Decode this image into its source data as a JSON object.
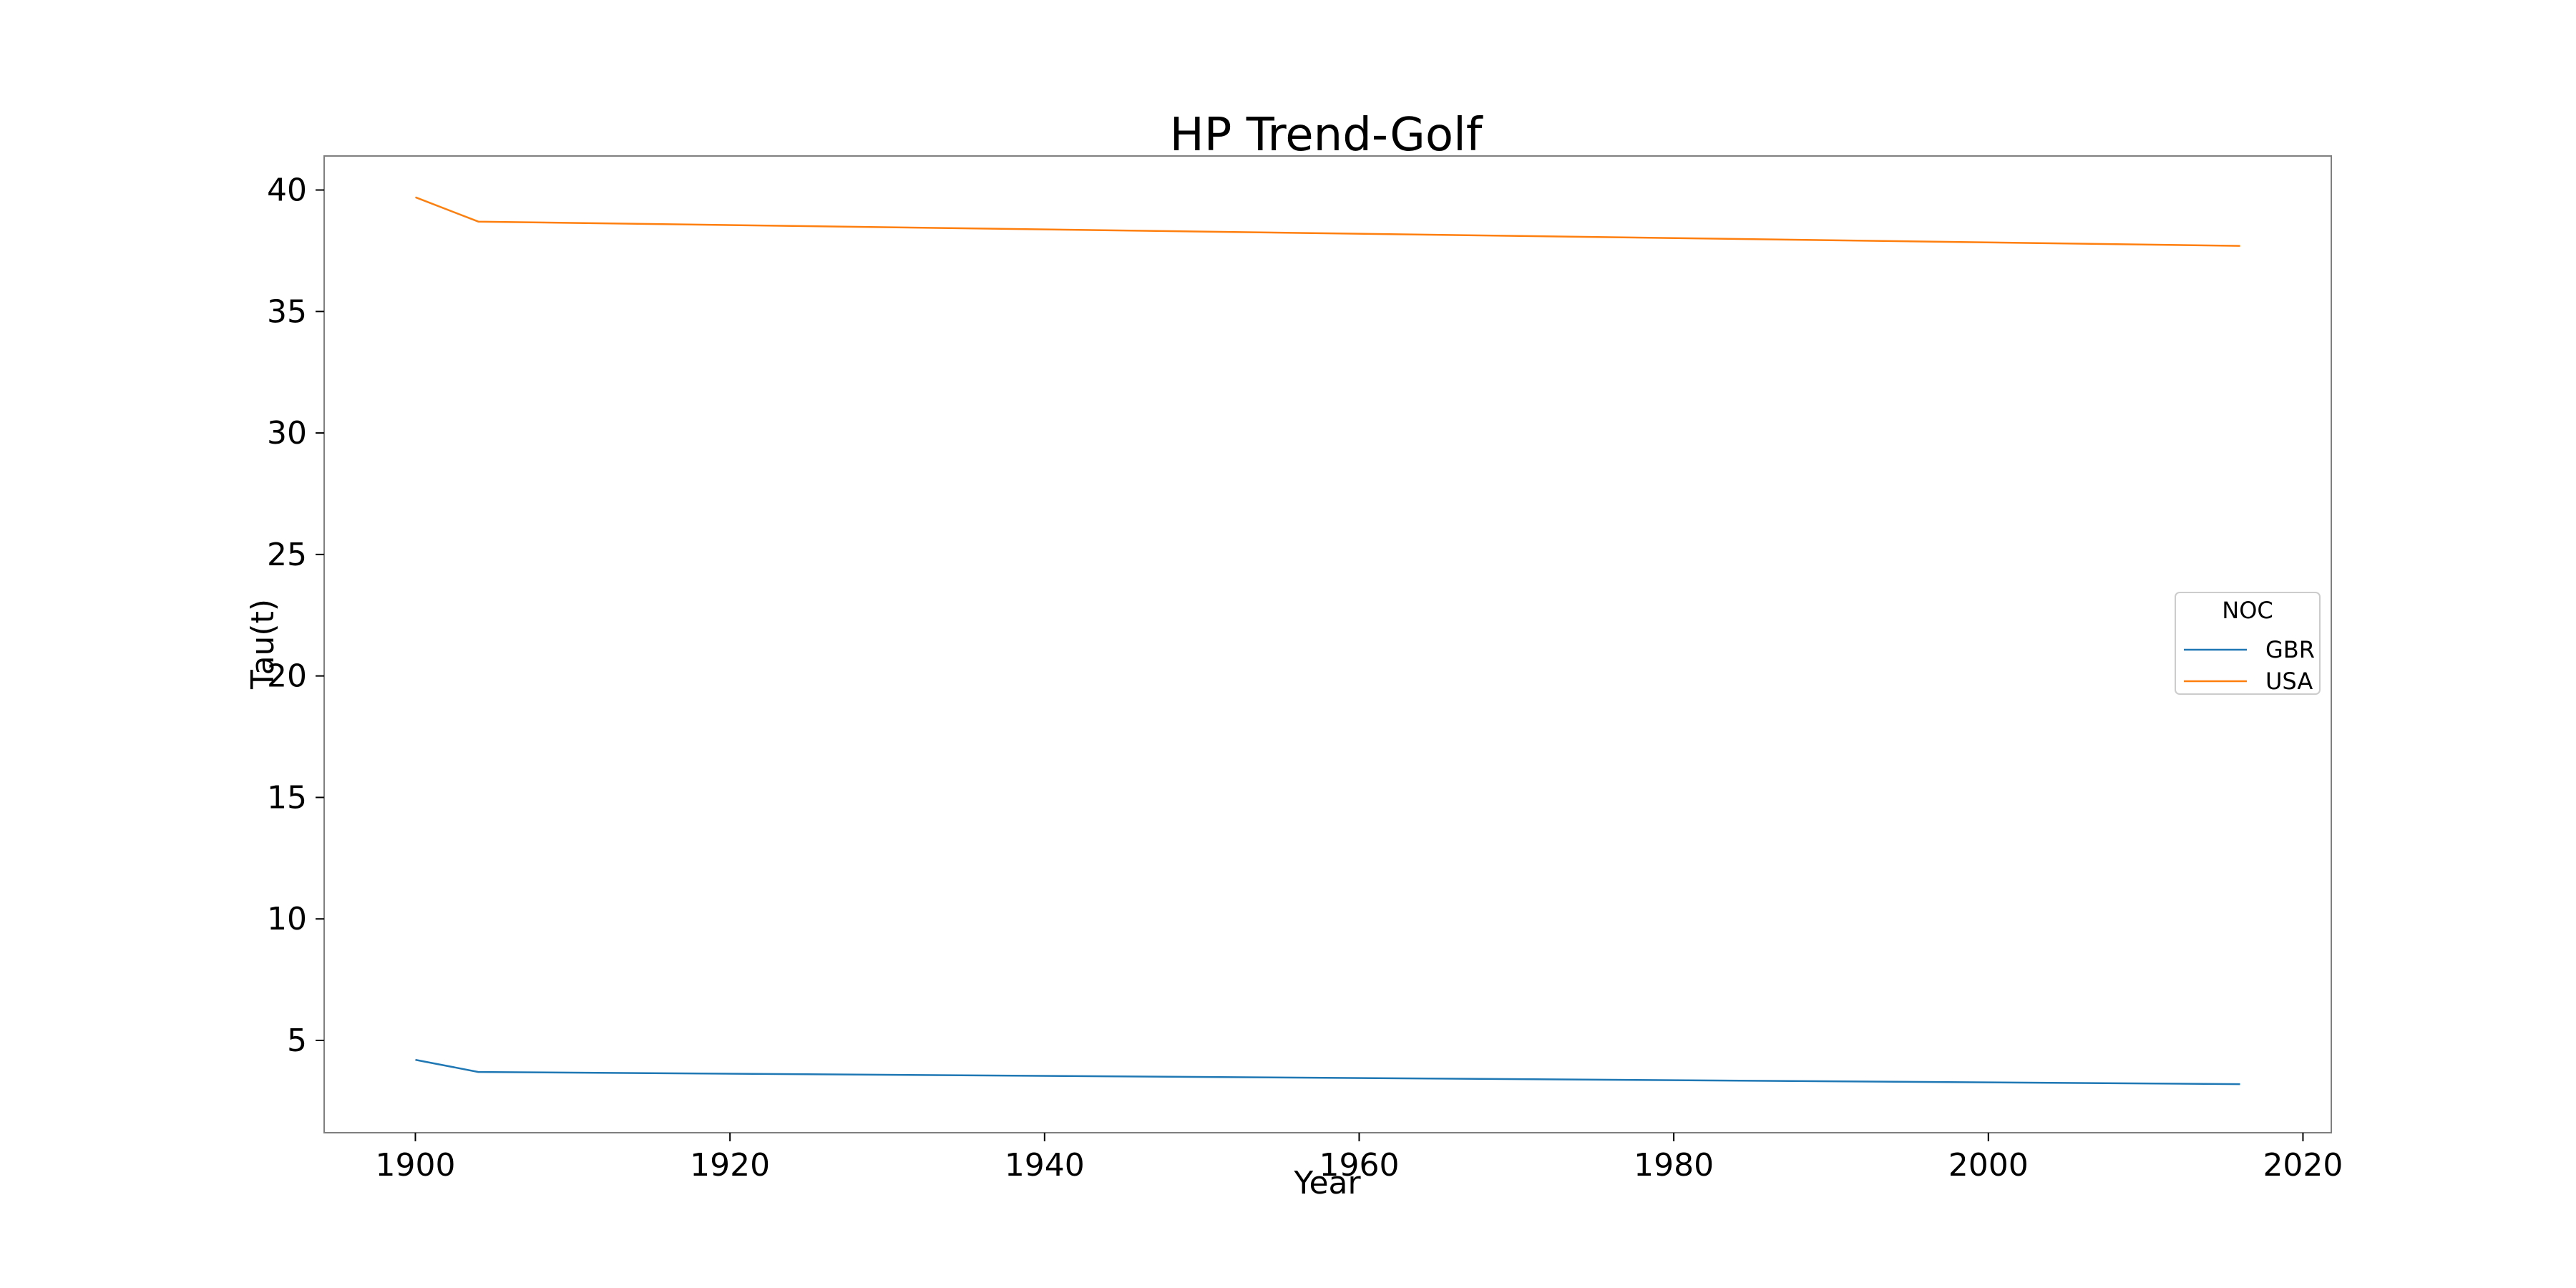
{
  "chart_data": {
    "type": "line",
    "title": "HP Trend-Golf",
    "xlabel": "Year",
    "ylabel": "Tau(t)",
    "xlim": [
      1894.2,
      2021.8
    ],
    "ylim": [
      1.2,
      41.4
    ],
    "xticks": [
      1900,
      1920,
      1940,
      1960,
      1980,
      2000,
      2020
    ],
    "yticks": [
      5,
      10,
      15,
      20,
      25,
      30,
      35,
      40
    ],
    "grid": false,
    "legend": {
      "title": "NOC",
      "position": "center-right"
    },
    "x": [
      1900,
      1904,
      2016
    ],
    "series": [
      {
        "name": "GBR",
        "color": "#1f77b4",
        "values": [
          4.2,
          3.7,
          3.2
        ]
      },
      {
        "name": "USA",
        "color": "#ff7f0e",
        "values": [
          39.7,
          38.7,
          37.7
        ]
      }
    ]
  }
}
